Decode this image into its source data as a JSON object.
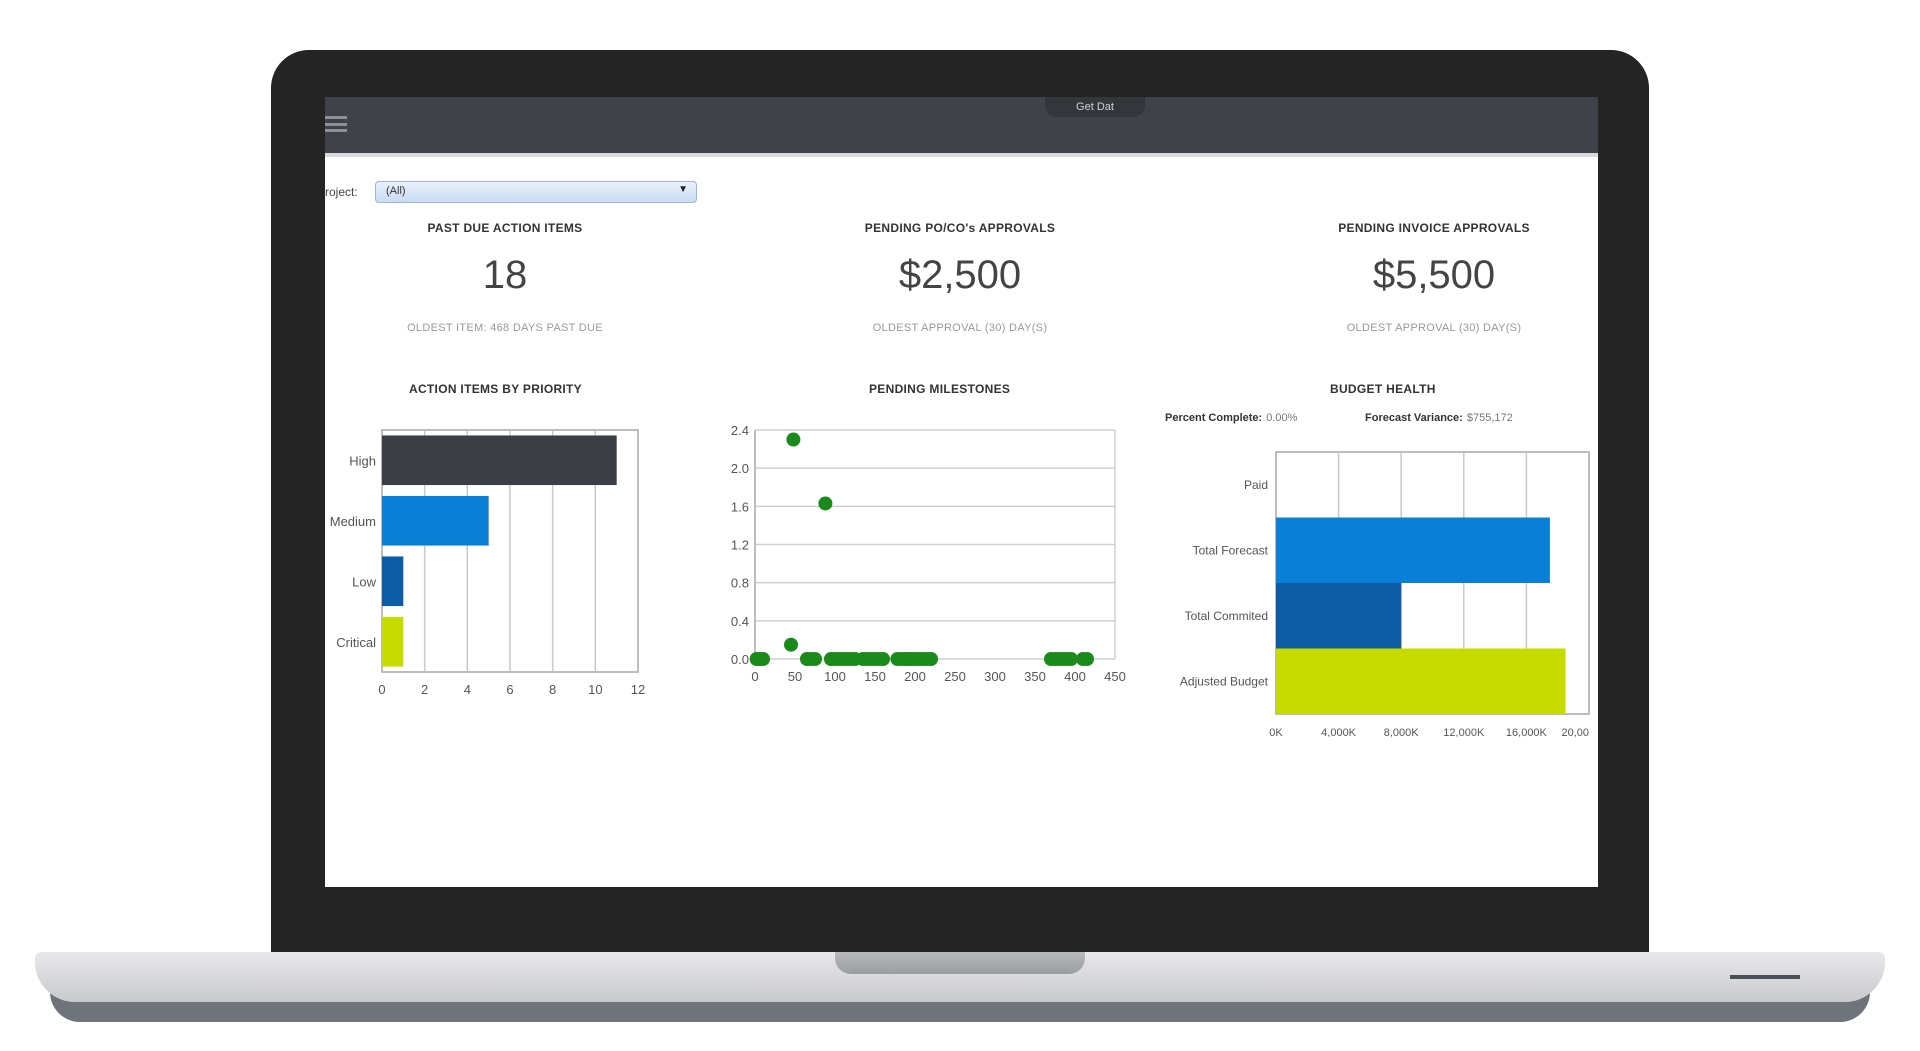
{
  "topbar": {
    "tab_label": "Get Dat"
  },
  "filters": {
    "project_label": "roject:",
    "project_value": "(All)"
  },
  "kpis": [
    {
      "title": "PAST DUE ACTION ITEMS",
      "value": "18",
      "sub": "OLDEST ITEM: 468 DAYS PAST DUE"
    },
    {
      "title": "PENDING PO/CO's APPROVALS",
      "value": "$2,500",
      "sub": "OLDEST APPROVAL (30) DAY(S)"
    },
    {
      "title": "PENDING INVOICE APPROVALS",
      "value": "$5,500",
      "sub": "OLDEST APPROVAL (30) DAY(S)"
    }
  ],
  "budget_meta": {
    "percent_label": "Percent Complete:",
    "percent_value": "0.00%",
    "variance_label": "Forecast Variance:",
    "variance_value": "$755,172"
  },
  "colors": {
    "dark": "#3b3e44",
    "blue": "#0a7fd6",
    "navy": "#0d5ca6",
    "lime": "#c6dc00",
    "green": "#1a8a1a"
  },
  "chart_data": [
    {
      "type": "bar",
      "orientation": "horizontal",
      "title": "ACTION ITEMS BY PRIORITY",
      "categories": [
        "High",
        "Medium",
        "Low",
        "Critical"
      ],
      "values": [
        11,
        5,
        1,
        1
      ],
      "xlim": [
        0,
        12
      ],
      "xticks": [
        "0",
        "2",
        "4",
        "6",
        "8",
        "10",
        "12"
      ],
      "grid": true
    },
    {
      "type": "scatter",
      "title": "PENDING MILESTONES",
      "xlim": [
        0,
        450
      ],
      "ylim": [
        0,
        2.4
      ],
      "xticks": [
        "0",
        "50",
        "100",
        "150",
        "200",
        "250",
        "300",
        "350",
        "400",
        "450"
      ],
      "yticks": [
        "0.0",
        "0.4",
        "0.8",
        "1.2",
        "1.6",
        "2.0",
        "2.4"
      ],
      "points": [
        [
          2,
          0
        ],
        [
          6,
          0
        ],
        [
          10,
          0
        ],
        [
          45,
          0.15
        ],
        [
          48,
          2.3
        ],
        [
          65,
          0
        ],
        [
          70,
          0
        ],
        [
          75,
          0
        ],
        [
          88,
          1.63
        ],
        [
          95,
          0
        ],
        [
          100,
          0
        ],
        [
          105,
          0
        ],
        [
          110,
          0
        ],
        [
          115,
          0
        ],
        [
          120,
          0
        ],
        [
          125,
          0
        ],
        [
          135,
          0
        ],
        [
          140,
          0
        ],
        [
          145,
          0
        ],
        [
          150,
          0
        ],
        [
          155,
          0
        ],
        [
          160,
          0
        ],
        [
          178,
          0
        ],
        [
          183,
          0
        ],
        [
          188,
          0
        ],
        [
          192,
          0
        ],
        [
          196,
          0
        ],
        [
          200,
          0
        ],
        [
          205,
          0
        ],
        [
          210,
          0
        ],
        [
          215,
          0
        ],
        [
          220,
          0
        ],
        [
          370,
          0
        ],
        [
          375,
          0
        ],
        [
          380,
          0
        ],
        [
          385,
          0
        ],
        [
          390,
          0
        ],
        [
          395,
          0
        ],
        [
          410,
          0
        ],
        [
          415,
          0
        ]
      ],
      "grid": true
    },
    {
      "type": "bar",
      "orientation": "horizontal",
      "title": "BUDGET HEALTH",
      "categories": [
        "Paid",
        "Total Forecast",
        "Total Commited",
        "Adjusted Budget"
      ],
      "values": [
        0,
        17500,
        8000,
        18500
      ],
      "xlim": [
        0,
        20000
      ],
      "xticks": [
        "0K",
        "4,000K",
        "8,000K",
        "12,000K",
        "16,000K",
        "20,00"
      ],
      "grid": true
    }
  ]
}
